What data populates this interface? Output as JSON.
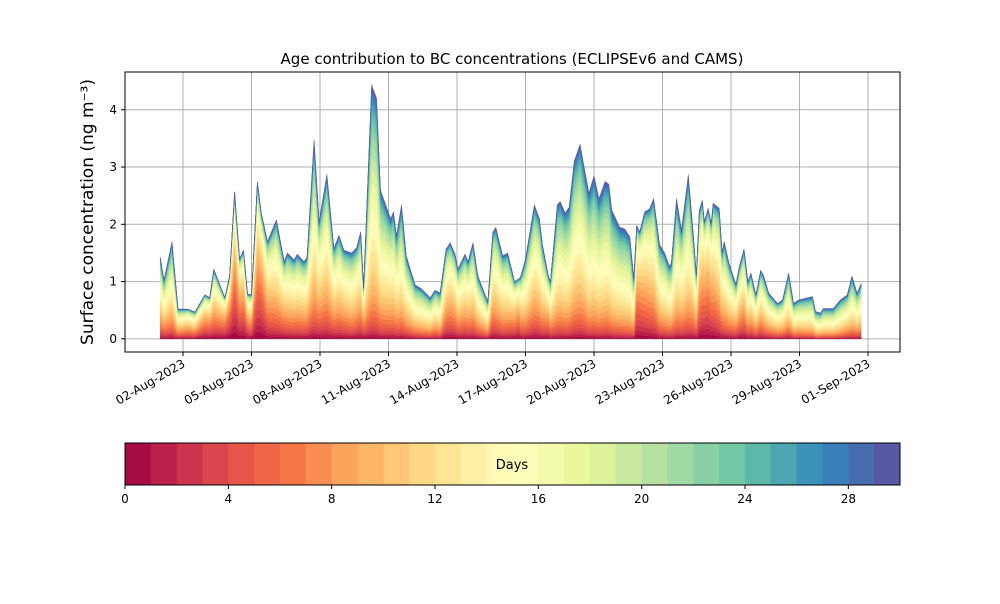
{
  "chart_data": {
    "type": "area",
    "stacked": true,
    "title": "Age contribution to BC concentrations (ECLIPSEv6 and CAMS)",
    "xlabel": "",
    "ylabel": "Surface concentration (ng m⁻³)",
    "x_units": "days since 01-Aug-2023",
    "xlim": [
      -1.54,
      32.4
    ],
    "ylim": [
      -0.23,
      4.66
    ],
    "yticks": [
      0,
      1,
      2,
      3,
      4
    ],
    "xticks": [
      {
        "t": 1,
        "label": "02-Aug-2023"
      },
      {
        "t": 4,
        "label": "05-Aug-2023"
      },
      {
        "t": 7,
        "label": "08-Aug-2023"
      },
      {
        "t": 10,
        "label": "11-Aug-2023"
      },
      {
        "t": 13,
        "label": "14-Aug-2023"
      },
      {
        "t": 16,
        "label": "17-Aug-2023"
      },
      {
        "t": 19,
        "label": "20-Aug-2023"
      },
      {
        "t": 22,
        "label": "23-Aug-2023"
      },
      {
        "t": 25,
        "label": "26-Aug-2023"
      },
      {
        "t": 28,
        "label": "29-Aug-2023"
      },
      {
        "t": 31,
        "label": "01-Sep-2023"
      }
    ],
    "grid": true,
    "age_bins_days": 30,
    "t": [
      0,
      0.17,
      0.52,
      0.78,
      1.22,
      1.52,
      1.96,
      2.17,
      2.35,
      2.83,
      3.04,
      3.26,
      3.48,
      3.65,
      3.83,
      4.0,
      4.26,
      4.43,
      4.7,
      5.09,
      5.43,
      5.57,
      5.87,
      6.0,
      6.3,
      6.43,
      6.74,
      6.96,
      7.3,
      7.61,
      7.83,
      8.04,
      8.39,
      8.61,
      8.78,
      8.91,
      9.26,
      9.48,
      9.65,
      10.09,
      10.22,
      10.35,
      10.57,
      10.78,
      11.17,
      11.43,
      11.83,
      12.04,
      12.26,
      12.52,
      12.7,
      12.91,
      13.04,
      13.35,
      13.48,
      13.7,
      13.91,
      14.35,
      14.57,
      14.7,
      15.0,
      15.22,
      15.52,
      15.7,
      15.78,
      16.0,
      16.39,
      16.61,
      16.74,
      17.0,
      17.09,
      17.39,
      17.52,
      17.74,
      17.91,
      18.13,
      18.39,
      18.57,
      18.78,
      19.0,
      19.22,
      19.48,
      19.65,
      19.78,
      20.13,
      20.35,
      20.57,
      20.74,
      20.87,
      21.0,
      21.22,
      21.43,
      21.61,
      21.87,
      22.09,
      22.3,
      22.39,
      22.61,
      22.83,
      23.13,
      23.35,
      23.48,
      23.61,
      23.74,
      23.83,
      24.0,
      24.13,
      24.22,
      24.48,
      24.61,
      24.7,
      24.91,
      25.22,
      25.35,
      25.57,
      25.74,
      25.87,
      26.09,
      26.3,
      26.43,
      26.65,
      27.04,
      27.26,
      27.52,
      27.74,
      27.96,
      28.57,
      28.7,
      28.91,
      29.04,
      29.48,
      29.78,
      30.09,
      30.3,
      30.52,
      30.7
    ],
    "total": [
      1.43,
      1.03,
      1.7,
      0.52,
      0.52,
      0.47,
      0.77,
      0.72,
      1.22,
      0.72,
      1.1,
      2.57,
      1.4,
      1.55,
      0.78,
      0.77,
      2.74,
      2.2,
      1.7,
      2.08,
      1.35,
      1.5,
      1.38,
      1.48,
      1.35,
      1.42,
      3.48,
      2.05,
      2.87,
      1.58,
      1.81,
      1.55,
      1.5,
      1.6,
      1.87,
      0.9,
      4.44,
      4.2,
      2.6,
      2.1,
      2.22,
      1.8,
      2.34,
      1.45,
      0.94,
      0.88,
      0.72,
      0.85,
      0.8,
      1.57,
      1.68,
      1.48,
      1.22,
      1.48,
      1.35,
      1.68,
      1.1,
      0.65,
      1.87,
      1.95,
      1.45,
      1.5,
      1.0,
      1.05,
      1.08,
      1.4,
      2.34,
      2.1,
      1.65,
      1.1,
      1.0,
      2.34,
      2.4,
      2.2,
      2.3,
      3.1,
      3.4,
      3.0,
      2.55,
      2.85,
      2.45,
      2.75,
      2.7,
      2.25,
      1.95,
      1.92,
      1.78,
      1.05,
      1.98,
      1.87,
      2.22,
      2.27,
      2.45,
      1.65,
      1.5,
      1.27,
      1.33,
      2.45,
      1.9,
      2.87,
      1.83,
      1.13,
      2.25,
      2.42,
      2.05,
      2.28,
      2.02,
      2.37,
      2.28,
      1.52,
      1.7,
      1.32,
      0.95,
      1.24,
      1.57,
      1.0,
      1.15,
      0.77,
      1.2,
      1.1,
      0.8,
      0.62,
      0.68,
      1.15,
      0.62,
      0.68,
      0.74,
      0.48,
      0.45,
      0.53,
      0.53,
      0.68,
      0.77,
      1.1,
      0.8,
      0.97
    ],
    "median_age_days": [
      13,
      13,
      14,
      12,
      10,
      11,
      8,
      8,
      10,
      7,
      6,
      6,
      7,
      7,
      8,
      9,
      7,
      6,
      10,
      12,
      11,
      12,
      12,
      12,
      12,
      12,
      14,
      12,
      13,
      12,
      12,
      12,
      13,
      12,
      12,
      10,
      16,
      16,
      15,
      14,
      14,
      14,
      15,
      14,
      14,
      14,
      14,
      13,
      14,
      11,
      11,
      11,
      12,
      12,
      12,
      13,
      13,
      13,
      12,
      13,
      13,
      13,
      10,
      8,
      11,
      13,
      13,
      13,
      13,
      10,
      12,
      15,
      15,
      15,
      15,
      15,
      15,
      15,
      16,
      16,
      16,
      16,
      16,
      16,
      16,
      16,
      16,
      14,
      8,
      8,
      10,
      11,
      12,
      14,
      14,
      14,
      14,
      15,
      14,
      15,
      13,
      12,
      10,
      9,
      8,
      8,
      9,
      10,
      12,
      12,
      13,
      13,
      12,
      11,
      11,
      12,
      12,
      12,
      12,
      13,
      13,
      13,
      13,
      14,
      14,
      14,
      15,
      15,
      15,
      15,
      15,
      15,
      14,
      15,
      14,
      14
    ],
    "colorbar": {
      "label": "Days",
      "range": [
        0,
        30
      ],
      "ticks": [
        0,
        4,
        8,
        12,
        16,
        20,
        24,
        28
      ],
      "colormap": [
        "#9e0142",
        "#d53e4f",
        "#f46d43",
        "#fdae61",
        "#fee08b",
        "#ffffbf",
        "#e6f598",
        "#abdda4",
        "#66c2a5",
        "#3288bd",
        "#5e4fa2"
      ]
    }
  }
}
